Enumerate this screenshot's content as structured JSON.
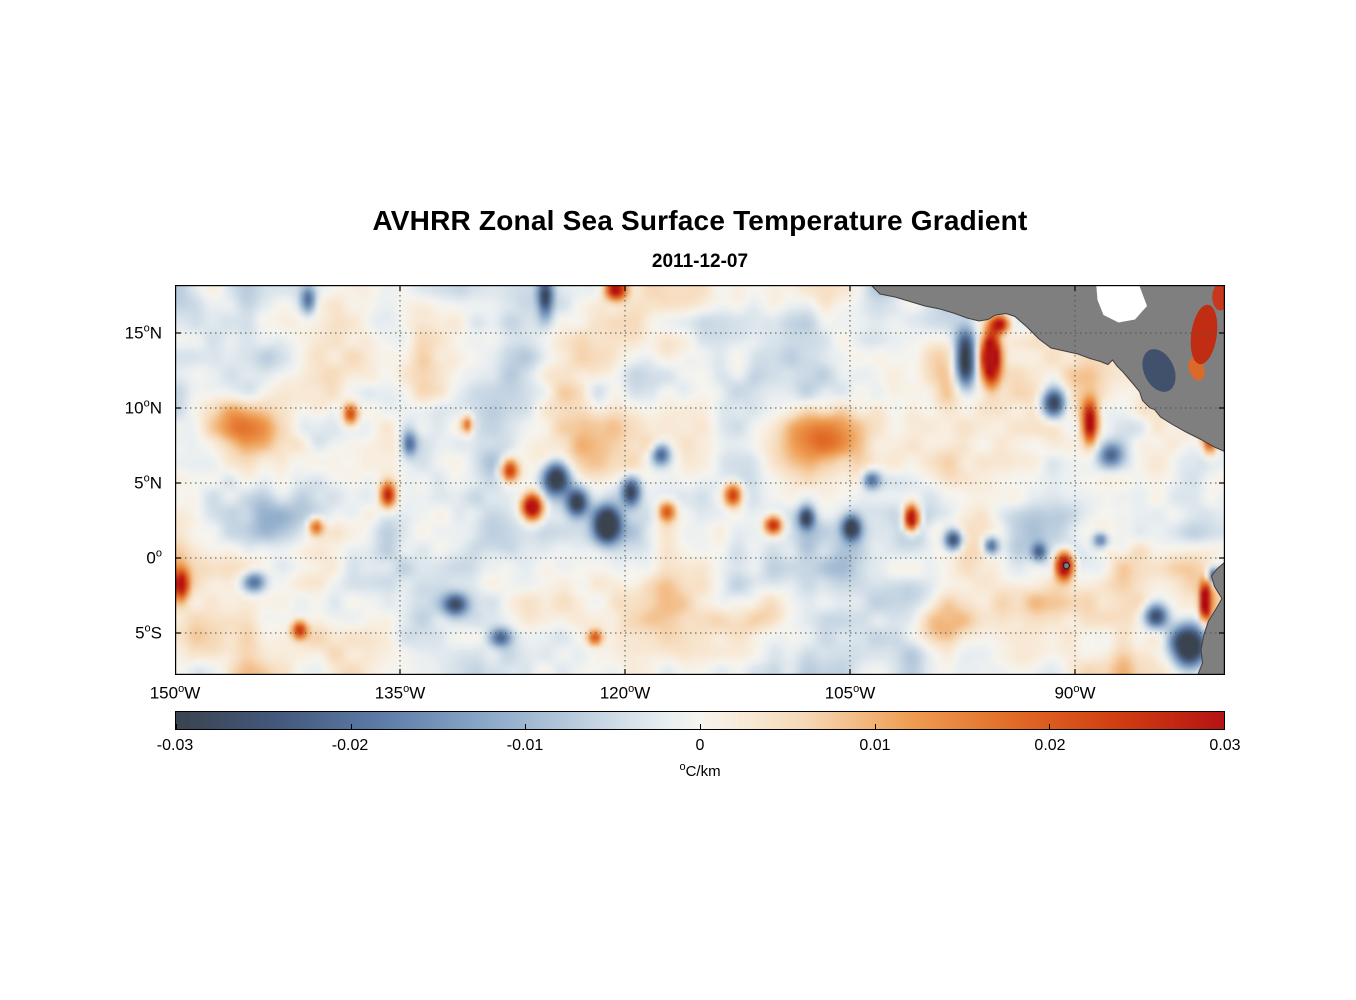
{
  "chart_data": {
    "type": "heatmap",
    "title": "AVHRR Zonal Sea Surface Temperature Gradient",
    "date": "2011-12-07",
    "unit_degree": "o",
    "unit_text": "C/km",
    "degree_symbol": "o",
    "xlim": [
      -150,
      -80
    ],
    "ylim": [
      -7.8,
      18.2
    ],
    "grid": true,
    "xticks": [
      {
        "value": -150,
        "num": "150",
        "suffix": "W"
      },
      {
        "value": -135,
        "num": "135",
        "suffix": "W"
      },
      {
        "value": -120,
        "num": "120",
        "suffix": "W"
      },
      {
        "value": -105,
        "num": "105",
        "suffix": "W"
      },
      {
        "value": -90,
        "num": "90",
        "suffix": "W"
      }
    ],
    "yticks": [
      {
        "value": 15,
        "num": "15",
        "suffix": "N"
      },
      {
        "value": 10,
        "num": "10",
        "suffix": "N"
      },
      {
        "value": 5,
        "num": "5",
        "suffix": "N"
      },
      {
        "value": 0,
        "num": "0",
        "suffix": ""
      },
      {
        "value": -5,
        "num": "5",
        "suffix": "S"
      }
    ],
    "colorbar": {
      "orientation": "horizontal",
      "min": -0.03,
      "max": 0.03,
      "ticks": [
        {
          "value": -0.03,
          "label": "-0.03"
        },
        {
          "value": -0.02,
          "label": "-0.02"
        },
        {
          "value": -0.01,
          "label": "-0.01"
        },
        {
          "value": 0,
          "label": "0"
        },
        {
          "value": 0.01,
          "label": "0.01"
        },
        {
          "value": 0.02,
          "label": "0.02"
        },
        {
          "value": 0.03,
          "label": "0.03"
        }
      ]
    },
    "colormap": {
      "stops": [
        {
          "value": -0.03,
          "color": "#3a4450"
        },
        {
          "value": -0.024,
          "color": "#44597d"
        },
        {
          "value": -0.018,
          "color": "#5e7da9"
        },
        {
          "value": -0.012,
          "color": "#8caac9"
        },
        {
          "value": -0.006,
          "color": "#c4d4e2"
        },
        {
          "value": -0.002,
          "color": "#e8eef1"
        },
        {
          "value": 0.0,
          "color": "#f6f4ee"
        },
        {
          "value": 0.002,
          "color": "#f8ecdc"
        },
        {
          "value": 0.006,
          "color": "#f6d8b6"
        },
        {
          "value": 0.012,
          "color": "#ef9e53"
        },
        {
          "value": 0.018,
          "color": "#e16a26"
        },
        {
          "value": 0.024,
          "color": "#d03d11"
        },
        {
          "value": 0.03,
          "color": "#b51313"
        }
      ]
    },
    "style": {
      "grid_color": "#46564a",
      "land_color": "#7f7f7f",
      "coast_color": "#3f3f3f",
      "axis_color": "#000000",
      "background": "#ffffff"
    },
    "field": {
      "noise": {
        "seed": 20111207,
        "octaves": [
          {
            "scale": 16,
            "amp": 0.0062
          },
          {
            "scale": 7,
            "amp": 0.0045
          },
          {
            "scale": 3.5,
            "amp": 0.0024
          }
        ]
      },
      "hotspots": [
        {
          "lon": -97.3,
          "lat": 13.2,
          "amp": -0.042,
          "rx": 0.7,
          "ry": 1.8
        },
        {
          "lon": -95.6,
          "lat": 13.4,
          "amp": 0.046,
          "rx": 0.6,
          "ry": 1.7
        },
        {
          "lon": -95.0,
          "lat": 15.6,
          "amp": 0.032,
          "rx": 0.6,
          "ry": 0.6
        },
        {
          "lon": -91.4,
          "lat": 10.4,
          "amp": -0.032,
          "rx": 0.8,
          "ry": 1.0
        },
        {
          "lon": -89.0,
          "lat": 9.0,
          "amp": 0.036,
          "rx": 0.5,
          "ry": 1.3
        },
        {
          "lon": -87.6,
          "lat": 6.9,
          "amp": -0.02,
          "rx": 0.8,
          "ry": 0.8
        },
        {
          "lon": -81.0,
          "lat": 8.3,
          "amp": 0.034,
          "rx": 0.45,
          "ry": 1.2
        },
        {
          "lon": -124.6,
          "lat": 5.3,
          "amp": -0.036,
          "rx": 0.9,
          "ry": 1.1
        },
        {
          "lon": -123.2,
          "lat": 3.7,
          "amp": -0.03,
          "rx": 0.7,
          "ry": 0.9
        },
        {
          "lon": -126.2,
          "lat": 3.4,
          "amp": 0.042,
          "rx": 0.7,
          "ry": 0.9
        },
        {
          "lon": -127.7,
          "lat": 5.8,
          "amp": 0.03,
          "rx": 0.6,
          "ry": 0.8
        },
        {
          "lon": -121.2,
          "lat": 2.2,
          "amp": -0.04,
          "rx": 0.8,
          "ry": 1.1
        },
        {
          "lon": -119.6,
          "lat": 4.4,
          "amp": -0.028,
          "rx": 0.6,
          "ry": 0.9
        },
        {
          "lon": -117.2,
          "lat": 3.1,
          "amp": 0.024,
          "rx": 0.6,
          "ry": 0.7
        },
        {
          "lon": -112.8,
          "lat": 4.2,
          "amp": 0.028,
          "rx": 0.6,
          "ry": 0.8
        },
        {
          "lon": -110.1,
          "lat": 2.2,
          "amp": 0.03,
          "rx": 0.6,
          "ry": 0.6
        },
        {
          "lon": -107.9,
          "lat": 2.7,
          "amp": -0.028,
          "rx": 0.5,
          "ry": 0.7
        },
        {
          "lon": -104.9,
          "lat": 2.0,
          "amp": -0.031,
          "rx": 0.6,
          "ry": 0.8
        },
        {
          "lon": -100.9,
          "lat": 2.6,
          "amp": 0.042,
          "rx": 0.5,
          "ry": 0.9
        },
        {
          "lon": -98.1,
          "lat": 1.2,
          "amp": -0.03,
          "rx": 0.6,
          "ry": 0.7
        },
        {
          "lon": -95.6,
          "lat": 0.8,
          "amp": -0.024,
          "rx": 0.5,
          "ry": 0.6
        },
        {
          "lon": -90.7,
          "lat": -0.5,
          "amp": 0.044,
          "rx": 0.6,
          "ry": 0.9
        },
        {
          "lon": -92.4,
          "lat": 0.4,
          "amp": -0.02,
          "rx": 0.5,
          "ry": 0.6
        },
        {
          "lon": -81.3,
          "lat": -2.9,
          "amp": 0.044,
          "rx": 0.35,
          "ry": 1.1
        },
        {
          "lon": -82.4,
          "lat": -5.9,
          "amp": -0.044,
          "rx": 1.2,
          "ry": 1.4
        },
        {
          "lon": -84.6,
          "lat": -3.9,
          "amp": -0.028,
          "rx": 0.8,
          "ry": 0.8
        },
        {
          "lon": -80.7,
          "lat": -1.2,
          "amp": -0.03,
          "rx": 0.4,
          "ry": 0.5
        },
        {
          "lon": -149.6,
          "lat": -1.8,
          "amp": 0.032,
          "rx": 0.5,
          "ry": 0.9
        },
        {
          "lon": -144.7,
          "lat": -1.6,
          "amp": -0.022,
          "rx": 0.8,
          "ry": 0.7
        },
        {
          "lon": -138.3,
          "lat": 9.6,
          "amp": 0.024,
          "rx": 0.5,
          "ry": 0.7
        },
        {
          "lon": -135.8,
          "lat": 4.2,
          "amp": 0.028,
          "rx": 0.5,
          "ry": 0.8
        },
        {
          "lon": -140.6,
          "lat": 2.1,
          "amp": 0.02,
          "rx": 0.5,
          "ry": 0.6
        },
        {
          "lon": -125.3,
          "lat": 17.3,
          "amp": -0.027,
          "rx": 0.5,
          "ry": 1.2
        },
        {
          "lon": -120.6,
          "lat": 17.9,
          "amp": 0.036,
          "rx": 0.7,
          "ry": 0.7
        },
        {
          "lon": -141.1,
          "lat": 17.2,
          "amp": -0.02,
          "rx": 0.5,
          "ry": 0.9
        },
        {
          "lon": -117.6,
          "lat": 6.9,
          "amp": -0.022,
          "rx": 0.6,
          "ry": 0.7
        },
        {
          "lon": -103.6,
          "lat": 5.2,
          "amp": -0.02,
          "rx": 0.6,
          "ry": 0.6
        },
        {
          "lon": -88.3,
          "lat": 1.2,
          "amp": -0.02,
          "rx": 0.5,
          "ry": 0.5
        },
        {
          "lon": -141.7,
          "lat": -4.8,
          "amp": 0.026,
          "rx": 0.5,
          "ry": 0.6
        },
        {
          "lon": -131.3,
          "lat": -3.1,
          "amp": -0.024,
          "rx": 0.8,
          "ry": 0.7
        },
        {
          "lon": -128.3,
          "lat": -5.3,
          "amp": -0.02,
          "rx": 0.7,
          "ry": 0.6
        },
        {
          "lon": -122.0,
          "lat": -5.3,
          "amp": 0.022,
          "rx": 0.5,
          "ry": 0.5
        },
        {
          "lon": -134.4,
          "lat": 7.6,
          "amp": -0.022,
          "rx": 0.5,
          "ry": 0.8
        },
        {
          "lon": -130.5,
          "lat": 8.9,
          "amp": 0.02,
          "rx": 0.4,
          "ry": 0.6
        },
        {
          "lon": -146.0,
          "lat": 9.0,
          "amp": 0.011,
          "rx": 2.5,
          "ry": 2.0
        },
        {
          "lon": -112.0,
          "lat": -4.0,
          "amp": 0.011,
          "rx": 3.0,
          "ry": 2.0
        },
        {
          "lon": -133.0,
          "lat": 13.0,
          "amp": 0.01,
          "rx": 3.0,
          "ry": 2.0
        },
        {
          "lon": -107.0,
          "lat": 8.0,
          "amp": 0.01,
          "rx": 2.5,
          "ry": 2.0
        },
        {
          "lon": -99.0,
          "lat": -4.5,
          "amp": 0.011,
          "rx": 2.5,
          "ry": 1.5
        },
        {
          "lon": -118.0,
          "lat": 12.0,
          "amp": -0.009,
          "rx": 3.0,
          "ry": 2.0
        },
        {
          "lon": -143.0,
          "lat": 3.0,
          "amp": -0.009,
          "rx": 2.5,
          "ry": 2.0
        }
      ]
    },
    "land": {
      "polygons": [
        {
          "name": "land-central-america",
          "color": "#7f7f7f",
          "stroke": "#3f3f3f",
          "points": [
            [
              -103.6,
              18.2
            ],
            [
              -103.0,
              17.6
            ],
            [
              -102.0,
              17.4
            ],
            [
              -101.0,
              17.1
            ],
            [
              -100.0,
              16.8
            ],
            [
              -99.0,
              16.6
            ],
            [
              -98.0,
              16.3
            ],
            [
              -97.2,
              16.0
            ],
            [
              -96.4,
              15.8
            ],
            [
              -95.8,
              15.9
            ],
            [
              -95.3,
              16.2
            ],
            [
              -94.6,
              16.3
            ],
            [
              -94.0,
              16.1
            ],
            [
              -93.2,
              15.4
            ],
            [
              -92.4,
              14.6
            ],
            [
              -91.6,
              14.0
            ],
            [
              -90.7,
              13.8
            ],
            [
              -89.8,
              13.6
            ],
            [
              -89.0,
              13.3
            ],
            [
              -88.3,
              13.1
            ],
            [
              -87.8,
              12.9
            ],
            [
              -87.5,
              13.2
            ],
            [
              -87.2,
              12.8
            ],
            [
              -86.8,
              12.4
            ],
            [
              -86.2,
              11.7
            ],
            [
              -85.7,
              11.1
            ],
            [
              -85.5,
              10.5
            ],
            [
              -85.0,
              10.0
            ],
            [
              -84.7,
              9.9
            ],
            [
              -84.3,
              9.4
            ],
            [
              -83.5,
              8.9
            ],
            [
              -82.6,
              8.4
            ],
            [
              -81.6,
              7.9
            ],
            [
              -80.7,
              7.4
            ],
            [
              -79.8,
              7.0
            ],
            [
              -79.8,
              18.4
            ]
          ]
        },
        {
          "name": "caribbean-no-data-wedge",
          "color": "#ffffff",
          "stroke": "",
          "points": [
            [
              -88.6,
              18.4
            ],
            [
              -85.8,
              18.4
            ],
            [
              -85.2,
              16.8
            ],
            [
              -86.0,
              15.9
            ],
            [
              -87.1,
              15.7
            ],
            [
              -88.1,
              16.2
            ],
            [
              -88.5,
              17.2
            ]
          ]
        },
        {
          "name": "land-south-america",
          "color": "#7f7f7f",
          "stroke": "#3f3f3f",
          "points": [
            [
              -79.8,
              -0.1
            ],
            [
              -80.5,
              -0.7
            ],
            [
              -80.9,
              -1.2
            ],
            [
              -80.7,
              -1.9
            ],
            [
              -80.2,
              -2.7
            ],
            [
              -80.6,
              -3.4
            ],
            [
              -81.1,
              -4.2
            ],
            [
              -81.4,
              -5.1
            ],
            [
              -81.6,
              -6.1
            ],
            [
              -81.5,
              -7.0
            ],
            [
              -81.9,
              -8.0
            ],
            [
              -79.8,
              -8.0
            ]
          ]
        },
        {
          "name": "land-galapagos-island",
          "color": "#7f7f7f",
          "stroke": "#1a1a1a",
          "points": [
            [
              -90.75,
              -0.35
            ],
            [
              -90.5,
              -0.3
            ],
            [
              -90.35,
              -0.5
            ],
            [
              -90.5,
              -0.75
            ],
            [
              -90.75,
              -0.65
            ]
          ]
        }
      ],
      "overlays": [
        {
          "name": "caribbean-data-patch-blue",
          "cx": -84.4,
          "cy": 12.5,
          "rx": 1.0,
          "ry": 1.5,
          "rot": -25,
          "color": "#41506b"
        },
        {
          "name": "caribbean-data-patch-orange",
          "cx": -81.9,
          "cy": 12.6,
          "rx": 0.5,
          "ry": 0.8,
          "rot": -20,
          "color": "#d96a2a"
        },
        {
          "name": "caribbean-data-patch-red",
          "cx": -81.4,
          "cy": 14.9,
          "rx": 0.85,
          "ry": 2.0,
          "rot": 8,
          "color": "#c02d12"
        },
        {
          "name": "caribbean-data-patch-red-2",
          "cx": -80.3,
          "cy": 17.4,
          "rx": 0.55,
          "ry": 0.9,
          "rot": 0,
          "color": "#c8381c"
        }
      ]
    }
  }
}
